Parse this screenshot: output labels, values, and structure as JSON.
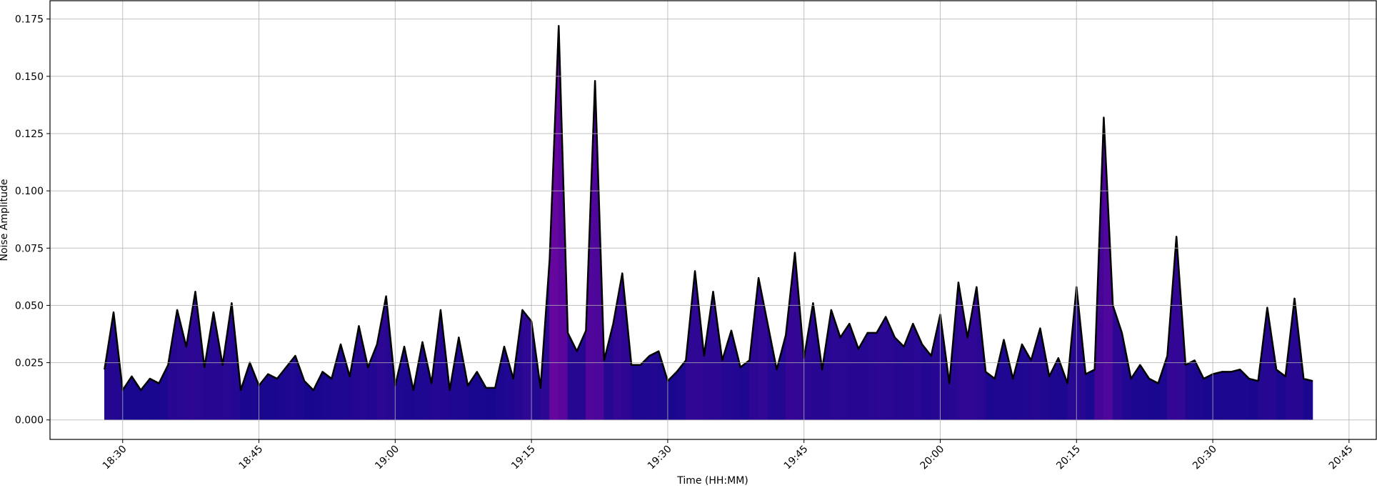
{
  "chart_data": {
    "type": "area",
    "xlabel": "Time (HH:MM)",
    "ylabel": "Noise Amplitude",
    "x": [
      "18:28",
      "18:29",
      "18:30",
      "18:31",
      "18:32",
      "18:33",
      "18:34",
      "18:35",
      "18:36",
      "18:37",
      "18:38",
      "18:39",
      "18:40",
      "18:41",
      "18:42",
      "18:43",
      "18:44",
      "18:45",
      "18:46",
      "18:47",
      "18:48",
      "18:49",
      "18:50",
      "18:51",
      "18:52",
      "18:53",
      "18:54",
      "18:55",
      "18:56",
      "18:57",
      "18:58",
      "18:59",
      "19:00",
      "19:01",
      "19:02",
      "19:03",
      "19:04",
      "19:05",
      "19:06",
      "19:07",
      "19:08",
      "19:09",
      "19:10",
      "19:11",
      "19:12",
      "19:13",
      "19:14",
      "19:15",
      "19:16",
      "19:17",
      "19:18",
      "19:19",
      "19:20",
      "19:21",
      "19:22",
      "19:23",
      "19:24",
      "19:25",
      "19:26",
      "19:27",
      "19:28",
      "19:29",
      "19:30",
      "19:31",
      "19:32",
      "19:33",
      "19:34",
      "19:35",
      "19:36",
      "19:37",
      "19:38",
      "19:39",
      "19:40",
      "19:41",
      "19:42",
      "19:43",
      "19:44",
      "19:45",
      "19:46",
      "19:47",
      "19:48",
      "19:49",
      "19:50",
      "19:51",
      "19:52",
      "19:53",
      "19:54",
      "19:55",
      "19:56",
      "19:57",
      "19:58",
      "19:59",
      "20:00",
      "20:01",
      "20:02",
      "20:03",
      "20:04",
      "20:05",
      "20:06",
      "20:07",
      "20:08",
      "20:09",
      "20:10",
      "20:11",
      "20:12",
      "20:13",
      "20:14",
      "20:15",
      "20:16",
      "20:17",
      "20:18",
      "20:19",
      "20:20",
      "20:21",
      "20:22",
      "20:23",
      "20:24",
      "20:25",
      "20:26",
      "20:27",
      "20:28",
      "20:29",
      "20:30",
      "20:31",
      "20:32",
      "20:33",
      "20:34",
      "20:35",
      "20:36",
      "20:37",
      "20:38",
      "20:39",
      "20:40",
      "20:41"
    ],
    "values": [
      0.022,
      0.047,
      0.013,
      0.019,
      0.013,
      0.018,
      0.016,
      0.024,
      0.048,
      0.032,
      0.056,
      0.023,
      0.047,
      0.024,
      0.051,
      0.013,
      0.025,
      0.015,
      0.02,
      0.018,
      0.023,
      0.028,
      0.017,
      0.013,
      0.021,
      0.018,
      0.033,
      0.019,
      0.041,
      0.023,
      0.033,
      0.054,
      0.015,
      0.032,
      0.013,
      0.034,
      0.016,
      0.048,
      0.013,
      0.036,
      0.015,
      0.021,
      0.014,
      0.014,
      0.032,
      0.018,
      0.048,
      0.043,
      0.014,
      0.07,
      0.172,
      0.038,
      0.03,
      0.039,
      0.148,
      0.026,
      0.042,
      0.064,
      0.024,
      0.024,
      0.028,
      0.03,
      0.017,
      0.021,
      0.026,
      0.065,
      0.028,
      0.056,
      0.026,
      0.039,
      0.023,
      0.026,
      0.062,
      0.042,
      0.022,
      0.037,
      0.073,
      0.027,
      0.051,
      0.022,
      0.048,
      0.036,
      0.042,
      0.031,
      0.038,
      0.038,
      0.045,
      0.036,
      0.032,
      0.042,
      0.033,
      0.028,
      0.046,
      0.016,
      0.06,
      0.036,
      0.058,
      0.021,
      0.018,
      0.035,
      0.018,
      0.033,
      0.026,
      0.04,
      0.019,
      0.027,
      0.016,
      0.058,
      0.02,
      0.022,
      0.132,
      0.05,
      0.038,
      0.018,
      0.024,
      0.018,
      0.016,
      0.028,
      0.08,
      0.024,
      0.026,
      0.018,
      0.02,
      0.021,
      0.021,
      0.022,
      0.018,
      0.017,
      0.049,
      0.022,
      0.019,
      0.053,
      0.018,
      0.017
    ],
    "line_color": "#000000",
    "fill_colors": [
      "#16078f",
      "#8b05a6"
    ],
    "xlim": [
      "18:22",
      "20:48"
    ],
    "xticks": [
      "18:30",
      "18:45",
      "19:00",
      "19:15",
      "19:30",
      "19:45",
      "20:00",
      "20:15",
      "20:30",
      "20:45"
    ],
    "ylim": [
      -0.0085,
      0.183
    ],
    "yticks": [
      {
        "value": 0,
        "label": "0.000"
      },
      0.025,
      {
        "value": 0.05,
        "label": "0.050"
      },
      0.075,
      {
        "value": 0.1,
        "label": "0.100"
      },
      0.125,
      {
        "value": 0.15,
        "label": "0.150"
      },
      0.175
    ],
    "grid": true
  }
}
